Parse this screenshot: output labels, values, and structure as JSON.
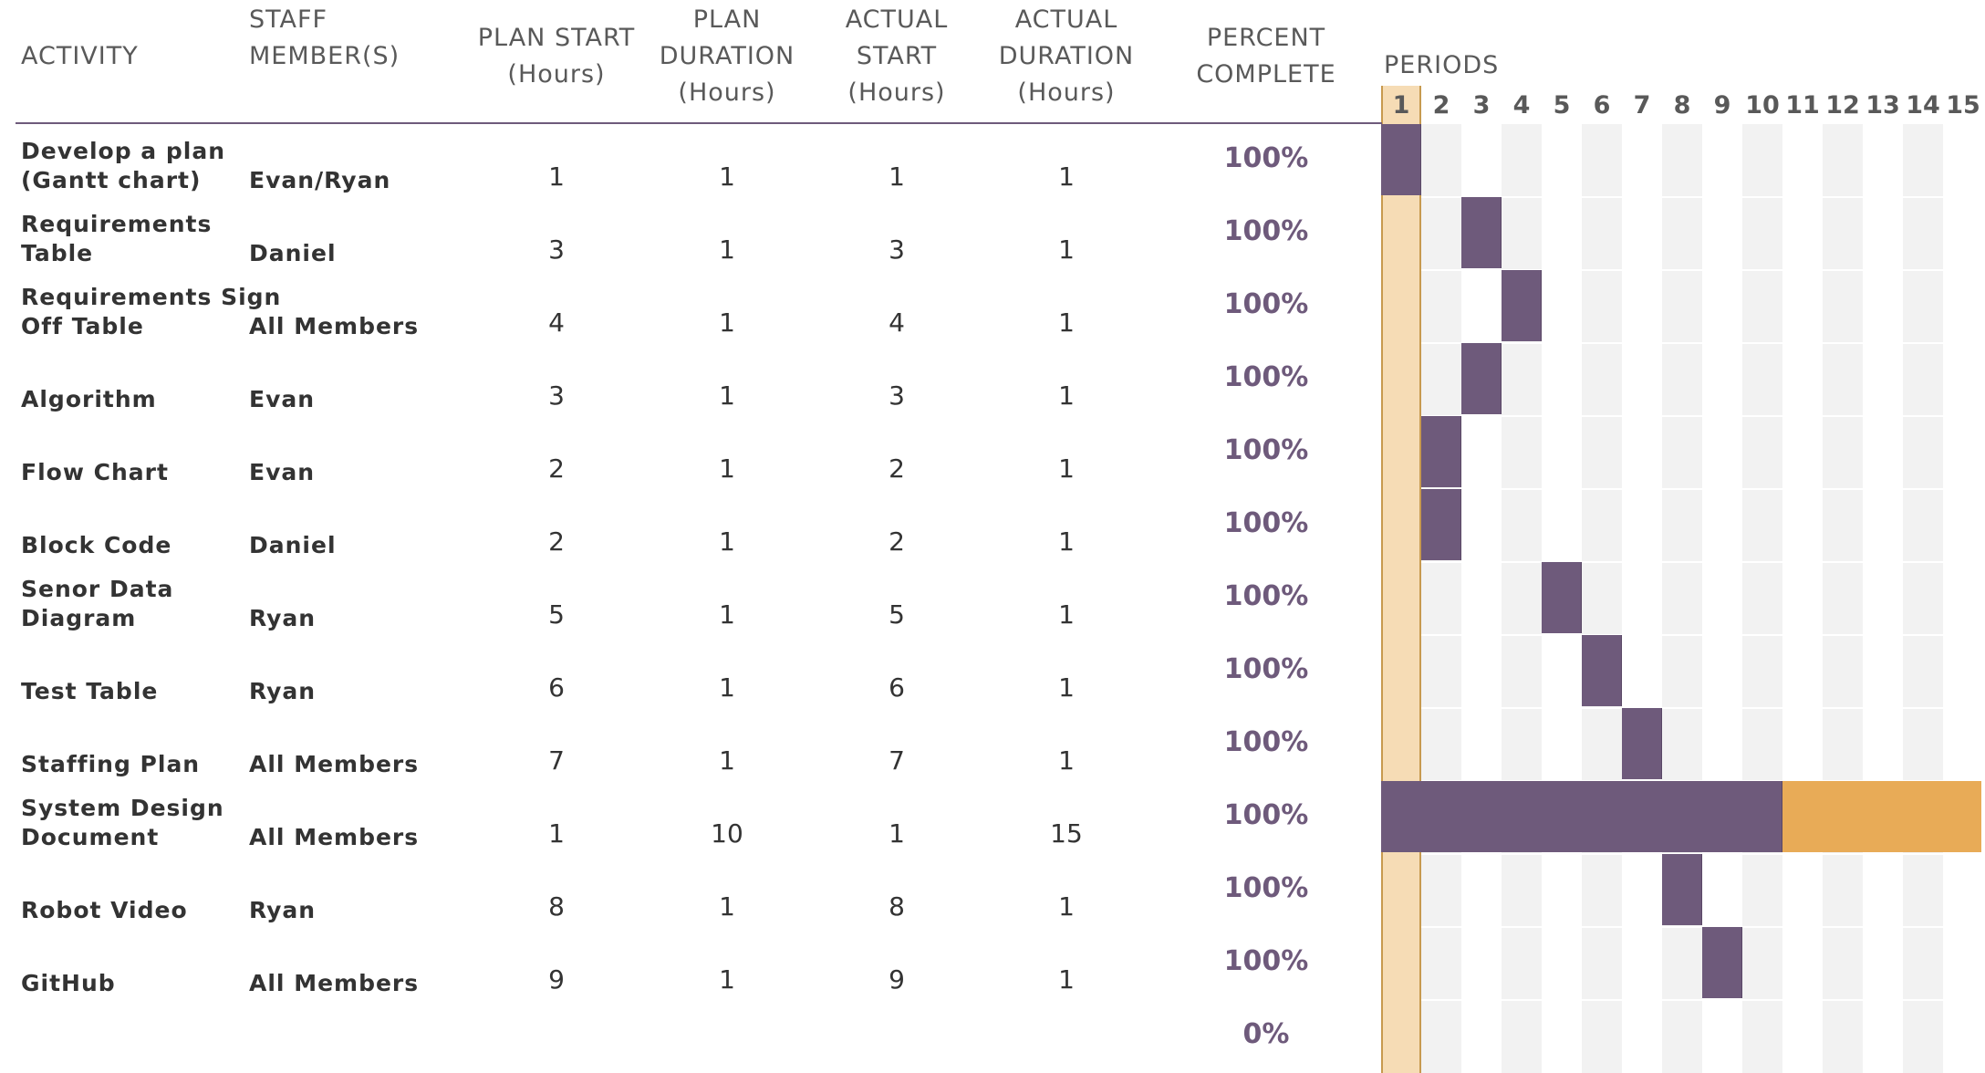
{
  "colors": {
    "accent_purple": "#6e5a7b",
    "highlight_period": "#f6dcb5",
    "highlight_border": "#c79a4f",
    "overrun_orange": "#e8ab57",
    "stripe_gray": "#f2f2f2",
    "header_text": "#595959"
  },
  "headers": {
    "activity": "ACTIVITY",
    "staff": "STAFF\nMEMBER(S)",
    "plan_start": "PLAN START\n(Hours)",
    "plan_duration": "PLAN\nDURATION\n(Hours)",
    "actual_start": "ACTUAL\nSTART\n(Hours)",
    "actual_duration": "ACTUAL\nDURATION\n(Hours)",
    "percent_complete": "PERCENT\nCOMPLETE",
    "periods": "PERIODS"
  },
  "highlighted_period": 1,
  "periods": [
    "1",
    "2",
    "3",
    "4",
    "5",
    "6",
    "7",
    "8",
    "9",
    "10",
    "11",
    "12",
    "13",
    "14",
    "15"
  ],
  "rows": [
    {
      "activity": "Develop a plan\n(Gantt chart)",
      "staff": "Evan/Ryan",
      "plan_start": "1",
      "plan_duration": "1",
      "actual_start": "1",
      "actual_duration": "1",
      "percent": "100%"
    },
    {
      "activity": "Requirements\nTable",
      "staff": "Daniel",
      "plan_start": "3",
      "plan_duration": "1",
      "actual_start": "3",
      "actual_duration": "1",
      "percent": "100%"
    },
    {
      "activity": "Requirements Sign\nOff Table",
      "staff": "All Members",
      "plan_start": "4",
      "plan_duration": "1",
      "actual_start": "4",
      "actual_duration": "1",
      "percent": "100%"
    },
    {
      "activity": "Algorithm",
      "staff": "Evan",
      "plan_start": "3",
      "plan_duration": "1",
      "actual_start": "3",
      "actual_duration": "1",
      "percent": "100%"
    },
    {
      "activity": "Flow Chart",
      "staff": "Evan",
      "plan_start": "2",
      "plan_duration": "1",
      "actual_start": "2",
      "actual_duration": "1",
      "percent": "100%"
    },
    {
      "activity": "Block Code",
      "staff": "Daniel",
      "plan_start": "2",
      "plan_duration": "1",
      "actual_start": "2",
      "actual_duration": "1",
      "percent": "100%"
    },
    {
      "activity": "Senor Data\nDiagram",
      "staff": "Ryan",
      "plan_start": "5",
      "plan_duration": "1",
      "actual_start": "5",
      "actual_duration": "1",
      "percent": "100%"
    },
    {
      "activity": "Test Table",
      "staff": "Ryan",
      "plan_start": "6",
      "plan_duration": "1",
      "actual_start": "6",
      "actual_duration": "1",
      "percent": "100%"
    },
    {
      "activity": "Staffing Plan",
      "staff": "All Members",
      "plan_start": "7",
      "plan_duration": "1",
      "actual_start": "7",
      "actual_duration": "1",
      "percent": "100%"
    },
    {
      "activity": "System Design\nDocument",
      "staff": "All Members",
      "plan_start": "1",
      "plan_duration": "10",
      "actual_start": "1",
      "actual_duration": "15",
      "percent": "100%"
    },
    {
      "activity": "Robot Video",
      "staff": "Ryan",
      "plan_start": "8",
      "plan_duration": "1",
      "actual_start": "8",
      "actual_duration": "1",
      "percent": "100%"
    },
    {
      "activity": "GitHub",
      "staff": "All Members",
      "plan_start": "9",
      "plan_duration": "1",
      "actual_start": "9",
      "actual_duration": "1",
      "percent": "100%"
    },
    {
      "activity": "",
      "staff": "",
      "plan_start": "",
      "plan_duration": "",
      "actual_start": "",
      "actual_duration": "",
      "percent": "0%"
    }
  ]
}
